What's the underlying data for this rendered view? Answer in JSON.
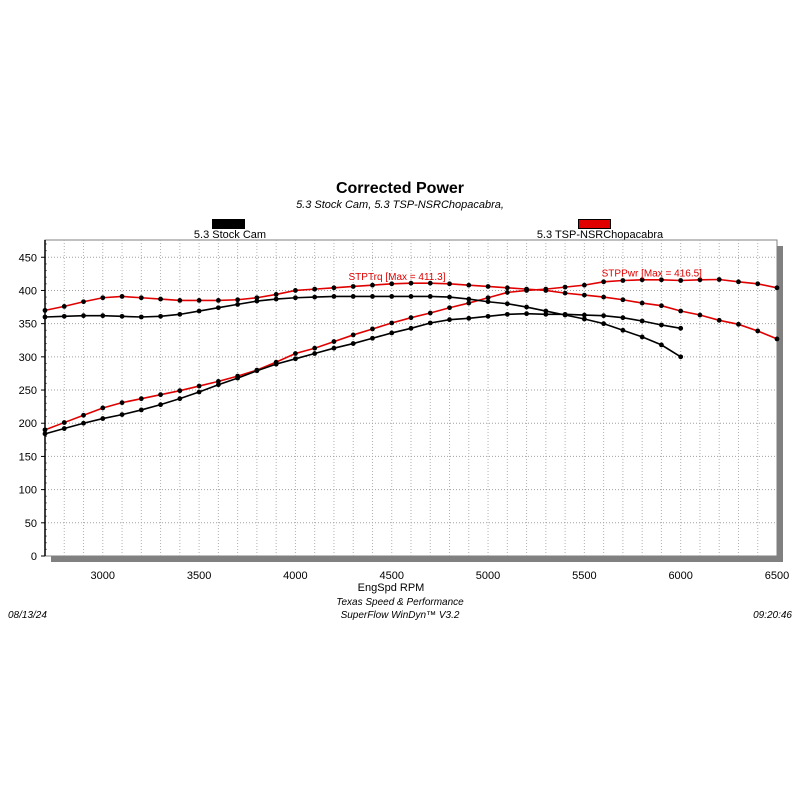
{
  "header": {
    "title": "Corrected Power",
    "subtitle": "5.3 Stock Cam, 5.3 TSP-NSRChopacabra,"
  },
  "legend": [
    {
      "label": "5.3 Stock Cam",
      "color": "#000000"
    },
    {
      "label": "5.3 TSP-NSRChopacabra",
      "color": "#e00000"
    }
  ],
  "annotations": {
    "torque_max": "STPTrq [Max = 411.3]",
    "power_max": "STPPwr [Max = 416.5]"
  },
  "footer": {
    "date": "08/13/24",
    "company": "Texas Speed & Performance",
    "software": "SuperFlow WinDyn™ V3.2",
    "time": "09:20:46"
  },
  "chart_data": {
    "type": "line",
    "title": "Corrected Power",
    "subtitle": "5.3 Stock Cam, 5.3 TSP-NSRChopacabra,",
    "xlabel": "EngSpd RPM",
    "ylabel": "",
    "xlim": [
      2700,
      6500
    ],
    "ylim": [
      0,
      450
    ],
    "xticks": [
      3000,
      3500,
      4000,
      4500,
      5000,
      5500,
      6000,
      6500
    ],
    "yticks": [
      0,
      50,
      100,
      150,
      200,
      250,
      300,
      350,
      400,
      450
    ],
    "grid": true,
    "legend_position": "top",
    "series": [
      {
        "name": "5.3 TSP-NSRChopacabra STPTrq",
        "color": "#e00000",
        "x": [
          2700,
          2800,
          2900,
          3000,
          3100,
          3200,
          3300,
          3400,
          3500,
          3600,
          3700,
          3800,
          3900,
          4000,
          4100,
          4200,
          4300,
          4400,
          4500,
          4600,
          4700,
          4800,
          4900,
          5000,
          5100,
          5200,
          5300,
          5400,
          5500,
          5600,
          5700,
          5800,
          5900,
          6000,
          6100,
          6200,
          6300,
          6400,
          6500
        ],
        "values": [
          370,
          376,
          383,
          389,
          391,
          389,
          387,
          385,
          385,
          385,
          386,
          389,
          394,
          400,
          402,
          404,
          406,
          408,
          410,
          411,
          411,
          410,
          408,
          406,
          404,
          402,
          400,
          396,
          393,
          390,
          386,
          381,
          377,
          369,
          363,
          355,
          349,
          339,
          327
        ]
      },
      {
        "name": "5.3 TSP-NSRChopacabra STPPwr",
        "color": "#e00000",
        "x": [
          2700,
          2800,
          2900,
          3000,
          3100,
          3200,
          3300,
          3400,
          3500,
          3600,
          3700,
          3800,
          3900,
          4000,
          4100,
          4200,
          4300,
          4400,
          4500,
          4600,
          4700,
          4800,
          4900,
          5000,
          5100,
          5200,
          5300,
          5400,
          5500,
          5600,
          5700,
          5800,
          5900,
          6000,
          6100,
          6200,
          6300,
          6400,
          6500
        ],
        "values": [
          190,
          201,
          212,
          223,
          231,
          237,
          243,
          249,
          256,
          263,
          271,
          280,
          292,
          305,
          313,
          323,
          333,
          342,
          351,
          359,
          366,
          374,
          381,
          389,
          397,
          400,
          402,
          405,
          408,
          413,
          415,
          416,
          416,
          415,
          416,
          416.5,
          413,
          410,
          404
        ]
      },
      {
        "name": "5.3 Stock Cam STPTrq",
        "color": "#000000",
        "x": [
          2700,
          2800,
          2900,
          3000,
          3100,
          3200,
          3300,
          3400,
          3500,
          3600,
          3700,
          3800,
          3900,
          4000,
          4100,
          4200,
          4300,
          4400,
          4500,
          4600,
          4700,
          4800,
          4900,
          5000,
          5100,
          5200,
          5300,
          5400,
          5500,
          5600,
          5700,
          5800,
          5900,
          6000
        ],
        "values": [
          360,
          361,
          362,
          362,
          361,
          360,
          361,
          364,
          369,
          374,
          379,
          384,
          387,
          389,
          390,
          391,
          391,
          391,
          391,
          391,
          391,
          390,
          387,
          383,
          380,
          375,
          369,
          363,
          357,
          350,
          340,
          330,
          318,
          300
        ]
      },
      {
        "name": "5.3 Stock Cam STPPwr",
        "color": "#000000",
        "x": [
          2700,
          2800,
          2900,
          3000,
          3100,
          3200,
          3300,
          3400,
          3500,
          3600,
          3700,
          3800,
          3900,
          4000,
          4100,
          4200,
          4300,
          4400,
          4500,
          4600,
          4700,
          4800,
          4900,
          5000,
          5100,
          5200,
          5300,
          5400,
          5500,
          5600,
          5700,
          5800,
          5900,
          6000
        ],
        "values": [
          184,
          192,
          200,
          207,
          213,
          220,
          228,
          237,
          247,
          258,
          268,
          279,
          289,
          297,
          305,
          313,
          320,
          328,
          336,
          343,
          351,
          356,
          358,
          361,
          364,
          365,
          364,
          364,
          363,
          362,
          359,
          354,
          348,
          343
        ]
      }
    ]
  }
}
